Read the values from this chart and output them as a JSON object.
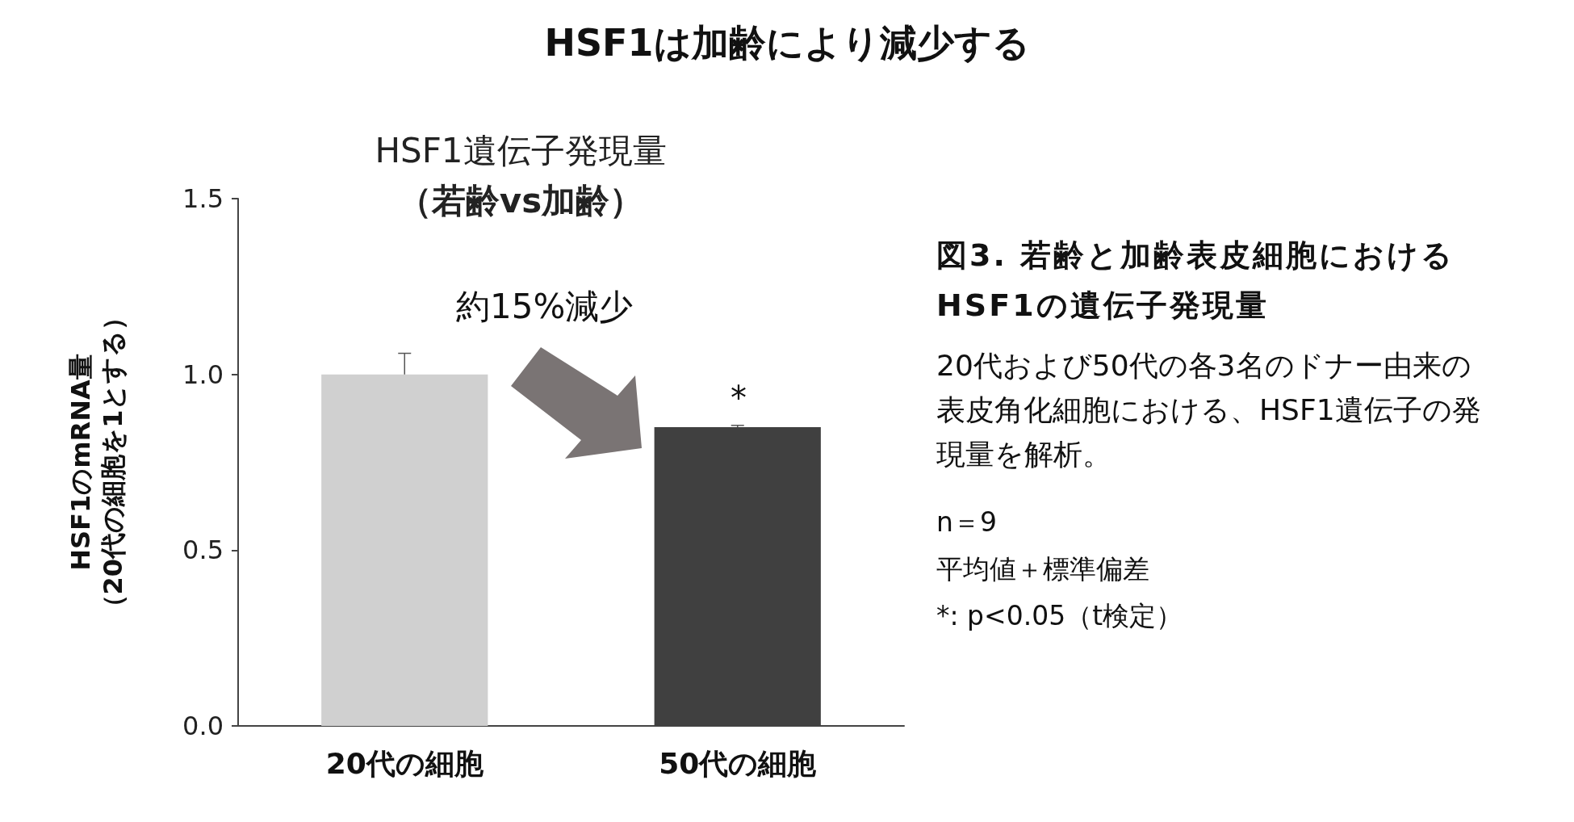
{
  "chart_data": {
    "type": "bar",
    "title": "HSF1は加齢により減少する",
    "subtitle": "HSF1遺伝子発現量（若齢vs加齢）",
    "ylabel": "HSF1のmRNA量（20代の細胞を1とする）",
    "categories": [
      "20代の細胞",
      "50代の細胞"
    ],
    "values": [
      1.0,
      0.85
    ],
    "colors": [
      "#d0d0d0",
      "#404040"
    ],
    "errors": [
      [
        1.0,
        1.06
      ],
      [
        0.85,
        0.855
      ]
    ],
    "ylim": [
      0,
      1.5
    ],
    "yticks": [
      {
        "value": 0,
        "label": "0.0"
      },
      {
        "value": 0.5,
        "label": "0.5"
      },
      {
        "value": 1,
        "label": "1.0"
      },
      {
        "value": 1.5,
        "label": "1.5"
      }
    ],
    "grid": false,
    "annotations": [
      "*",
      "約15%減少",
      "図3.  若齢と加齢表皮細胞における\nHSF1の遺伝子発現量",
      "20代および50代の各3名のドナー由来の表皮角化細胞における、HSF1遺伝子の発現量を解析。",
      "n＝9\n平均値＋標準偏差\n*:  p<0.05（t検定）"
    ]
  }
}
